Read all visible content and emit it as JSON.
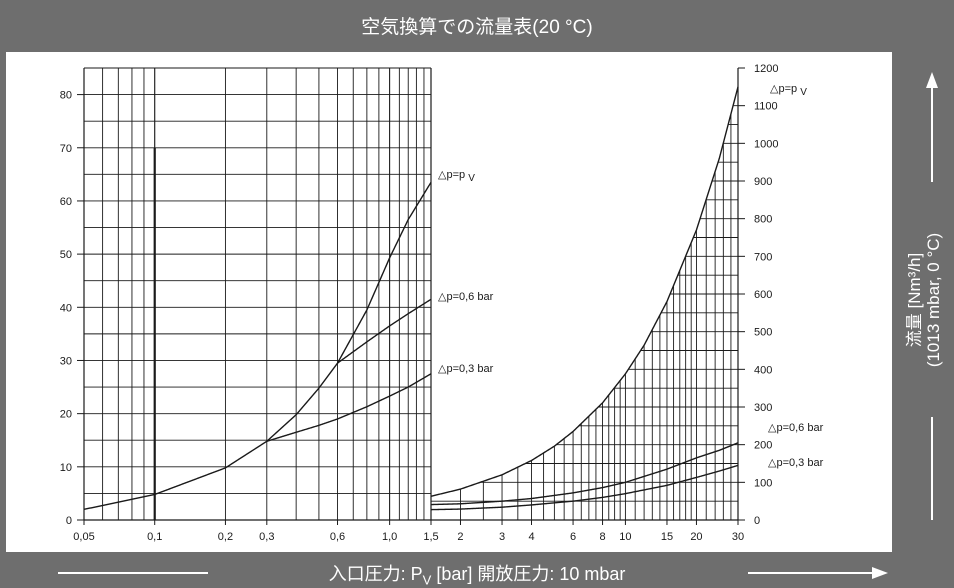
{
  "title": "空気換算での流量表(20 °C)",
  "x_axis": {
    "label_prefix": "入口圧力: P",
    "label_subscript": "V",
    "label_suffix": " [bar] 開放圧力: 10 mbar"
  },
  "y_axis": {
    "label_line1": "流量 [Nm³/h]",
    "label_line2": "(1013 mbar, 0 °C)"
  },
  "colors": {
    "frame": "#6e6e6e",
    "panel": "#ffffff",
    "ink": "#1a1a1a"
  },
  "chart_data": [
    {
      "type": "line",
      "panel": "left",
      "x_scale": "log",
      "xlim": [
        0.05,
        1.5
      ],
      "ylim": [
        0,
        85
      ],
      "x_ticks": [
        0.05,
        0.1,
        0.2,
        0.3,
        0.6,
        1.0,
        1.5
      ],
      "x_tick_labels": [
        "0,05",
        "0,1",
        "0,2",
        "0,3",
        "0,6",
        "1,0",
        "1,5"
      ],
      "y_ticks": [
        0,
        10,
        20,
        30,
        40,
        50,
        60,
        70,
        80
      ],
      "y_tick_labels": [
        "0",
        "10",
        "20",
        "30",
        "40",
        "50",
        "60",
        "70",
        "80"
      ],
      "series": [
        {
          "name": "△p=p V",
          "x": [
            0.05,
            0.1,
            0.2,
            0.3,
            0.4,
            0.5,
            0.6,
            0.8,
            1.0,
            1.2,
            1.5
          ],
          "y": [
            2,
            4.8,
            9.8,
            14.8,
            19.8,
            24.8,
            29.5,
            39.5,
            49.3,
            56.5,
            63.5
          ]
        },
        {
          "name": "△p=0,6 bar",
          "x": [
            0.6,
            0.8,
            1.0,
            1.2,
            1.5
          ],
          "y": [
            29.5,
            33.5,
            36.5,
            38.8,
            41.5
          ]
        },
        {
          "name": "△p=0,3 bar",
          "x": [
            0.3,
            0.4,
            0.5,
            0.6,
            0.8,
            1.0,
            1.2,
            1.5
          ],
          "y": [
            14.8,
            16.5,
            17.8,
            19,
            21.3,
            23.3,
            25,
            27.5
          ]
        }
      ]
    },
    {
      "type": "line",
      "panel": "right",
      "x_scale": "log",
      "xlim": [
        1.5,
        30
      ],
      "ylim": [
        0,
        1200
      ],
      "x_ticks": [
        2,
        3,
        4,
        6,
        8,
        10,
        15,
        20,
        30
      ],
      "x_tick_labels": [
        "2",
        "3",
        "4",
        "6",
        "8",
        "10",
        "15",
        "20",
        "30"
      ],
      "y_ticks": [
        0,
        100,
        200,
        300,
        400,
        500,
        600,
        700,
        800,
        900,
        1000,
        1100,
        1200
      ],
      "y_tick_labels": [
        "0",
        "100",
        "200",
        "300",
        "400",
        "500",
        "600",
        "700",
        "800",
        "900",
        "1000",
        "1100",
        "1200"
      ],
      "series": [
        {
          "name": "△p=p V",
          "x": [
            1.5,
            2,
            3,
            4,
            5,
            6,
            8,
            10,
            12,
            15,
            20,
            25,
            30
          ],
          "y": [
            63,
            82,
            120,
            158,
            196,
            235,
            311,
            388,
            464,
            580,
            770,
            960,
            1150
          ]
        },
        {
          "name": "△p=0,6 bar",
          "x": [
            1.5,
            2,
            3,
            4,
            6,
            8,
            10,
            15,
            20,
            25,
            30
          ],
          "y": [
            41,
            43,
            50,
            57,
            72,
            86,
            100,
            135,
            165,
            185,
            205
          ]
        },
        {
          "name": "△p=0,3 bar",
          "x": [
            1.5,
            2,
            3,
            4,
            6,
            8,
            10,
            15,
            20,
            25,
            30
          ],
          "y": [
            27.5,
            29,
            34,
            40,
            50,
            60,
            70,
            92,
            113,
            130,
            145
          ]
        }
      ]
    }
  ]
}
